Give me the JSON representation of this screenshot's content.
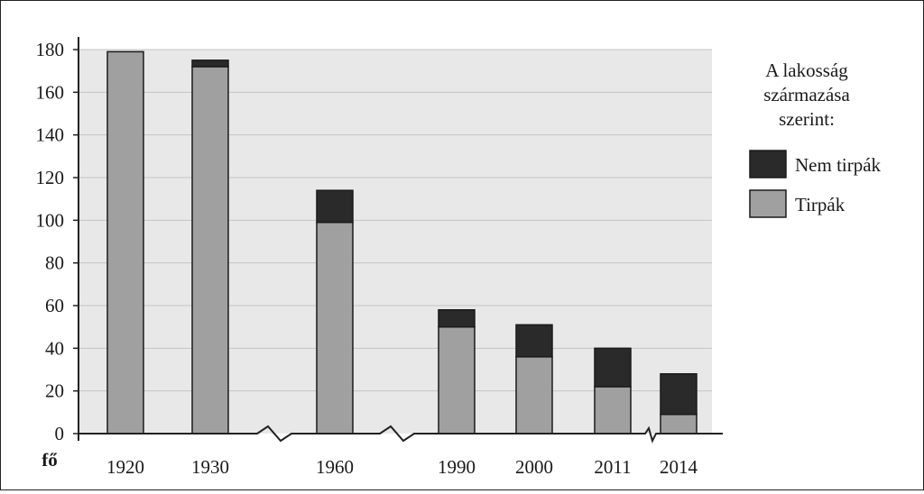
{
  "chart_data": {
    "type": "bar",
    "stacked": true,
    "categories": [
      "1920",
      "1930",
      "1960",
      "1990",
      "2000",
      "2011",
      "2014"
    ],
    "series": [
      {
        "name": "Tirpák",
        "values": [
          179,
          172,
          99,
          50,
          36,
          22,
          9
        ],
        "color": "#a0a0a0"
      },
      {
        "name": "Nem tirpák",
        "values": [
          0,
          3,
          15,
          8,
          15,
          18,
          19
        ],
        "color": "#2a2a2a"
      }
    ],
    "ylabel": "fő",
    "ylim": [
      0,
      180
    ],
    "yticks": [
      0,
      20,
      40,
      60,
      80,
      100,
      120,
      140,
      160,
      180
    ],
    "grid": true,
    "axis_breaks": [
      "1930–1960",
      "1960–1990",
      "2011–2014"
    ],
    "plot_background": "#e8e8e8",
    "legend": {
      "title_lines": [
        "A lakosság",
        "származása",
        "szerint:"
      ],
      "placement": "right"
    }
  }
}
